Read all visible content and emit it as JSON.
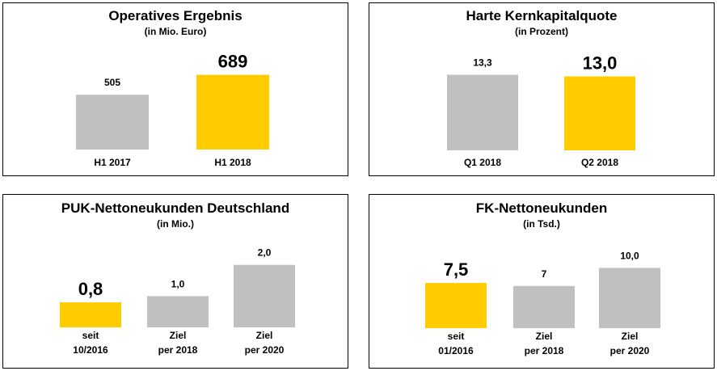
{
  "colors": {
    "highlight": "#FFCC00",
    "neutral": "#C0C0C0",
    "border": "#000000"
  },
  "chart_data": [
    {
      "type": "bar",
      "title": "Operatives Ergebnis",
      "subtitle": "(in Mio. Euro)",
      "categories": [
        "H1 2017",
        "H1 2018"
      ],
      "category_lines": [
        [
          "H1 2017"
        ],
        [
          "H1 2018"
        ]
      ],
      "values": [
        505,
        689
      ],
      "value_labels": [
        "505",
        "689"
      ],
      "highlight": [
        false,
        true
      ],
      "ylim": [
        0,
        760
      ]
    },
    {
      "type": "bar",
      "title": "Harte Kernkapitalquote",
      "subtitle": "(in Prozent)",
      "categories": [
        "Q1 2018",
        "Q2 2018"
      ],
      "category_lines": [
        [
          "Q1 2018"
        ],
        [
          "Q2 2018"
        ]
      ],
      "values": [
        13.3,
        13.0
      ],
      "value_labels": [
        "13,3",
        "13,0"
      ],
      "highlight": [
        false,
        true
      ],
      "ylim": [
        0,
        14.5
      ]
    },
    {
      "type": "bar",
      "title": "PUK-Nettoneukunden Deutschland",
      "subtitle": "(in Mio.)",
      "categories": [
        "seit 10/2016",
        "Ziel per 2018",
        "Ziel per 2020"
      ],
      "category_lines": [
        [
          "seit",
          "10/2016"
        ],
        [
          "Ziel",
          "per 2018"
        ],
        [
          "Ziel",
          "per 2020"
        ]
      ],
      "values": [
        0.8,
        1.0,
        2.0
      ],
      "value_labels": [
        "0,8",
        "1,0",
        "2,0"
      ],
      "highlight": [
        true,
        false,
        false
      ],
      "ylim": [
        0,
        2.2
      ]
    },
    {
      "type": "bar",
      "title": "FK-Nettoneukunden",
      "subtitle": "(in Tsd.)",
      "categories": [
        "seit 01/2016",
        "Ziel per 2018",
        "Ziel per 2020"
      ],
      "category_lines": [
        [
          "seit",
          "01/2016"
        ],
        [
          "Ziel",
          "per 2018"
        ],
        [
          "Ziel",
          "per 2020"
        ]
      ],
      "values": [
        7.5,
        7,
        10.0
      ],
      "value_labels": [
        "7,5",
        "7",
        "10,0"
      ],
      "highlight": [
        true,
        false,
        false
      ],
      "ylim": [
        0,
        11.4
      ]
    }
  ]
}
